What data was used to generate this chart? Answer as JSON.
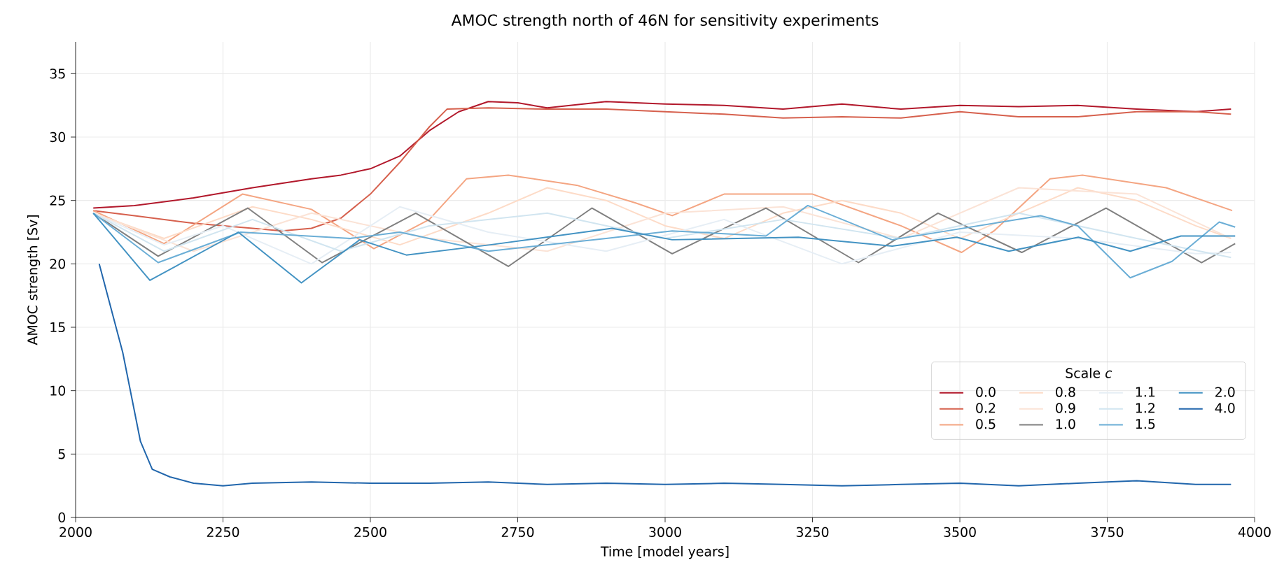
{
  "chart_data": {
    "type": "line",
    "title": "AMOC strength north of 46N for sensitivity experiments",
    "xlabel": "Time [model years]",
    "ylabel": "AMOC strength [Sv]",
    "legend_title": "Scale *c*",
    "xlim": [
      2000,
      4000
    ],
    "xticks": [
      2000,
      2250,
      2500,
      2750,
      3000,
      3250,
      3500,
      3750,
      4000
    ],
    "ylim": [
      0,
      37.5
    ],
    "yticks": [
      0,
      5,
      10,
      15,
      20,
      25,
      30,
      35
    ],
    "grid": true,
    "legend": "center right",
    "marker": "none",
    "line_style": "solid",
    "series": [
      {
        "name": "0.0",
        "color": "#b2182b",
        "x": [
          2030,
          2100,
          2200,
          2300,
          2400,
          2450,
          2500,
          2550,
          2600,
          2650,
          2700,
          2750,
          2800,
          2900,
          3000,
          3100,
          3200,
          3300,
          3400,
          3500,
          3600,
          3700,
          3800,
          3900,
          3960
        ],
        "values": [
          24.4,
          24.6,
          25.2,
          26.0,
          26.7,
          27.0,
          27.5,
          28.5,
          30.5,
          32.0,
          32.8,
          32.7,
          32.3,
          32.8,
          32.6,
          32.5,
          32.2,
          32.6,
          32.2,
          32.5,
          32.4,
          32.5,
          32.2,
          32.0,
          32.2
        ]
      },
      {
        "name": "0.2",
        "color": "#d6604d",
        "x": [
          2030,
          2100,
          2200,
          2300,
          2350,
          2400,
          2450,
          2500,
          2550,
          2600,
          2630,
          2700,
          2800,
          2900,
          3000,
          3100,
          3200,
          3300,
          3400,
          3500,
          3600,
          3700,
          3800,
          3900,
          3960
        ],
        "values": [
          24.2,
          23.8,
          23.2,
          22.8,
          22.6,
          22.8,
          23.6,
          25.5,
          28.0,
          30.8,
          32.2,
          32.3,
          32.2,
          32.2,
          32.0,
          31.8,
          31.5,
          31.6,
          31.5,
          32.0,
          31.6,
          31.6,
          32.0,
          32.0,
          31.8
        ]
      },
      {
        "name": "0.5",
        "color": "#f4a582",
        "x": [
          2030,
          2150,
          2283,
          2400,
          2506,
          2600,
          2663,
          2734,
          2850,
          2950,
          3012,
          3100,
          3250,
          3400,
          3503,
          3558,
          3653,
          3708,
          3850,
          3962
        ],
        "values": [
          24.2,
          21.6,
          25.5,
          24.3,
          21.2,
          23.5,
          26.7,
          27.0,
          26.2,
          24.8,
          23.8,
          25.5,
          25.5,
          23.0,
          20.9,
          22.6,
          26.7,
          27.0,
          26.0,
          24.2
        ]
      },
      {
        "name": "0.8",
        "color": "#fddbc7",
        "x": [
          2030,
          2150,
          2300,
          2400,
          2550,
          2700,
          2800,
          2900,
          3000,
          3100,
          3200,
          3300,
          3400,
          3500,
          3600,
          3700,
          3800,
          3900,
          3960
        ],
        "values": [
          24.0,
          22.0,
          24.5,
          23.5,
          21.5,
          24.0,
          26.0,
          25.0,
          23.0,
          22.0,
          24.0,
          25.0,
          24.0,
          22.0,
          24.0,
          26.0,
          25.0,
          23.0,
          22.0
        ]
      },
      {
        "name": "0.9",
        "color": "#fbe3d6",
        "x": [
          2030,
          2200,
          2400,
          2600,
          2800,
          3000,
          3200,
          3400,
          3600,
          3800,
          3960
        ],
        "values": [
          24.0,
          21.0,
          24.0,
          22.0,
          21.0,
          24.0,
          24.5,
          22.0,
          26.0,
          25.5,
          22.0
        ]
      },
      {
        "name": "1.0",
        "color": "#808080",
        "x": [
          2030,
          2140,
          2292,
          2418,
          2577,
          2734,
          2876,
          3012,
          3171,
          3328,
          3463,
          3605,
          3748,
          3910,
          3967
        ],
        "values": [
          24.0,
          20.6,
          24.4,
          20.1,
          24.0,
          19.8,
          24.4,
          20.8,
          24.4,
          20.1,
          24.0,
          20.9,
          24.4,
          20.1,
          21.6
        ]
      },
      {
        "name": "1.1",
        "color": "#e6eef5",
        "x": [
          2030,
          2150,
          2250,
          2400,
          2550,
          2700,
          2900,
          3100,
          3300,
          3500,
          3700,
          3900,
          3960
        ],
        "values": [
          24.0,
          21.5,
          23.0,
          20.0,
          24.5,
          22.5,
          21.0,
          23.5,
          20.0,
          22.5,
          22.0,
          20.8,
          20.9
        ]
      },
      {
        "name": "1.2",
        "color": "#d1e5f0",
        "x": [
          2030,
          2150,
          2300,
          2450,
          2600,
          2800,
          3000,
          3200,
          3400,
          3600,
          3800,
          3960
        ],
        "values": [
          24.0,
          21.0,
          23.5,
          21.0,
          23.0,
          24.0,
          22.0,
          23.5,
          22.0,
          24.0,
          22.0,
          20.5
        ]
      },
      {
        "name": "1.5",
        "color": "#6baed6",
        "x": [
          2030,
          2140,
          2280,
          2466,
          2550,
          2700,
          2900,
          3012,
          3171,
          3242,
          3385,
          3637,
          3700,
          3789,
          3860,
          3940,
          3967
        ],
        "values": [
          24.0,
          20.1,
          22.5,
          22.0,
          22.5,
          21.0,
          22.0,
          22.6,
          22.2,
          24.6,
          21.9,
          23.8,
          23.0,
          18.9,
          20.2,
          23.3,
          22.9
        ]
      },
      {
        "name": "2.0",
        "color": "#4393c3",
        "x": [
          2030,
          2126,
          2276,
          2383,
          2482,
          2561,
          2703,
          2910,
          3012,
          3226,
          3385,
          3495,
          3583,
          3701,
          3789,
          3875,
          3967
        ],
        "values": [
          24.0,
          18.7,
          22.5,
          18.5,
          21.9,
          20.7,
          21.5,
          22.8,
          21.9,
          22.1,
          21.4,
          22.1,
          21.0,
          22.1,
          21.0,
          22.2,
          22.2
        ]
      },
      {
        "name": "4.0",
        "color": "#2166ac",
        "x": [
          2040,
          2080,
          2110,
          2130,
          2160,
          2200,
          2250,
          2300,
          2400,
          2500,
          2600,
          2700,
          2800,
          2900,
          3000,
          3100,
          3200,
          3300,
          3400,
          3500,
          3600,
          3700,
          3800,
          3900,
          3960
        ],
        "values": [
          20.0,
          13.0,
          6.0,
          3.8,
          3.2,
          2.7,
          2.5,
          2.7,
          2.8,
          2.7,
          2.7,
          2.8,
          2.6,
          2.7,
          2.6,
          2.7,
          2.6,
          2.5,
          2.6,
          2.7,
          2.5,
          2.7,
          2.9,
          2.6,
          2.6
        ]
      }
    ]
  }
}
